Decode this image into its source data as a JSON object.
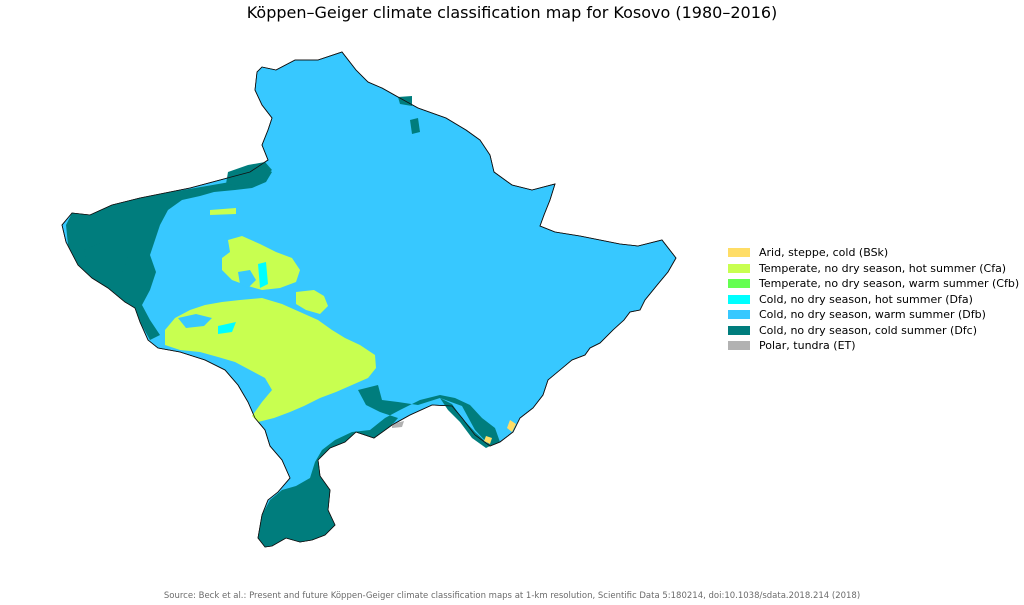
{
  "title": "Köppen–Geiger climate classification map for Kosovo (1980–2016)",
  "legend": [
    {
      "label": "Arid, steppe, cold (BSk)",
      "color": "#FFDD66"
    },
    {
      "label": "Temperate, no dry season, hot summer (Cfa)",
      "color": "#C8FF50"
    },
    {
      "label": "Temperate, no dry season, warm summer (Cfb)",
      "color": "#64FF50"
    },
    {
      "label": "Cold, no dry season, hot summer (Dfa)",
      "color": "#00FFFF"
    },
    {
      "label": "Cold, no dry season, warm summer (Dfb)",
      "color": "#37C8FF"
    },
    {
      "label": "Cold, no dry season, cold summer (Dfc)",
      "color": "#007D7D"
    },
    {
      "label": "Polar, tundra (ET)",
      "color": "#B2B2B2"
    }
  ],
  "source": "Source: Beck et al.: Present and future Köppen-Geiger climate classification maps at 1-km resolution, Scientific Data 5:180214, doi:10.1038/sdata.2018.214 (2018)"
}
